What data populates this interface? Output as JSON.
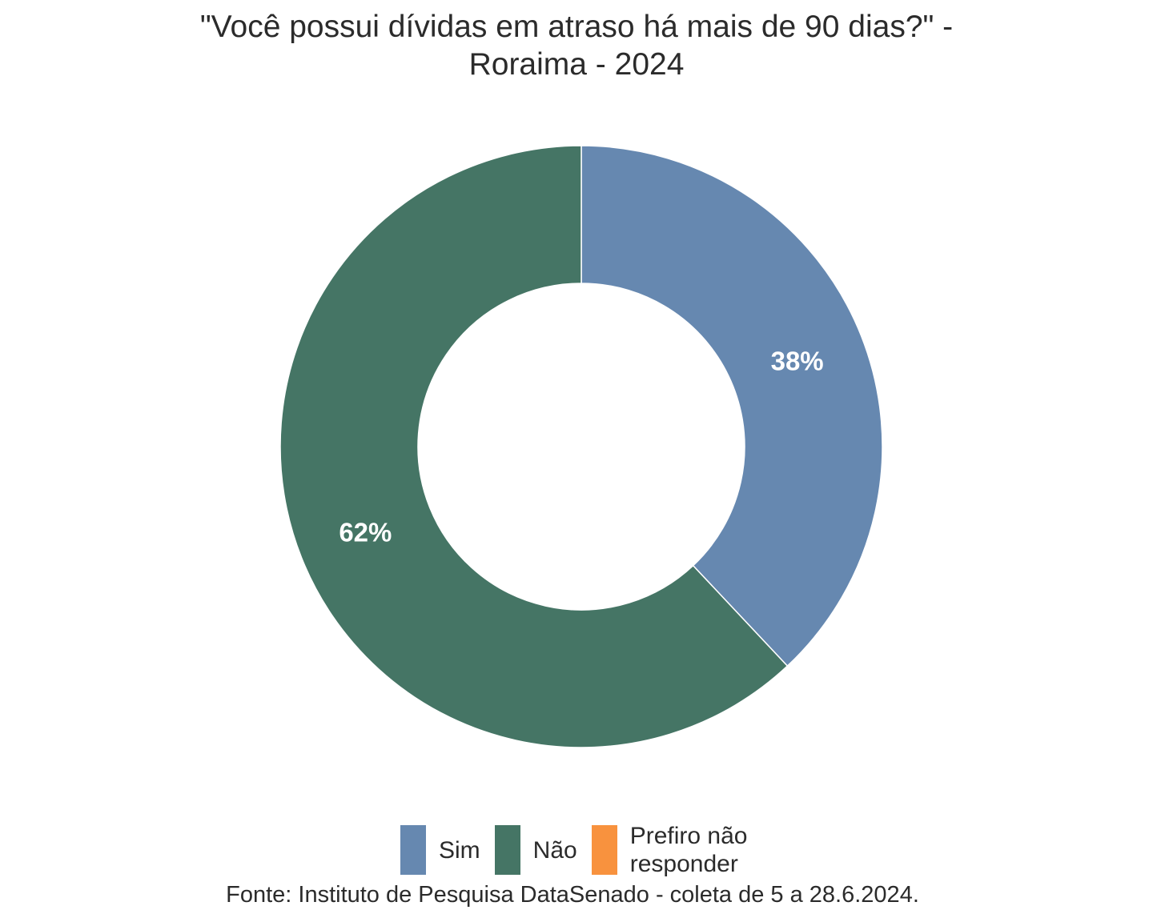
{
  "chart_data": {
    "type": "pie",
    "title_lines": [
      "\"Você possui dívidas em atraso há mais de 90 dias?\" -",
      "Roraima - 2024"
    ],
    "categories": [
      "Sim",
      "Não",
      "Prefiro não responder"
    ],
    "values": [
      38,
      62,
      0
    ],
    "labels": [
      "38%",
      "62%",
      ""
    ],
    "colors": [
      "#6688b0",
      "#457565",
      "#f8923e"
    ],
    "legend_position": "bottom",
    "legend": [
      {
        "label": "Sim",
        "color": "#6688b0"
      },
      {
        "label": "Não",
        "color": "#457565"
      },
      {
        "label": "Prefiro não responder",
        "color": "#f8923e"
      }
    ],
    "caption": "Fonte: Instituto de Pesquisa DataSenado - coleta de 5 a 28.6.2024."
  }
}
